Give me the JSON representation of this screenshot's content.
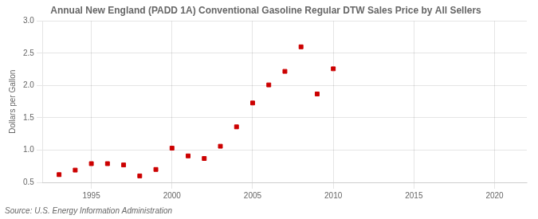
{
  "chart_data": {
    "type": "scatter",
    "title": "Annual New England (PADD 1A) Conventional Gasoline Regular DTW Sales Price by All Sellers",
    "ylabel": "Dollars per Gallon",
    "annotations": [
      "Source: U.S. Energy Information Administration"
    ],
    "x": [
      1993,
      1994,
      1995,
      1996,
      1997,
      1998,
      1999,
      2000,
      2001,
      2002,
      2003,
      2004,
      2005,
      2006,
      2007,
      2008,
      2009,
      2010
    ],
    "values": [
      0.62,
      0.69,
      0.79,
      0.79,
      0.77,
      0.6,
      0.7,
      1.03,
      0.91,
      0.87,
      1.06,
      1.36,
      1.73,
      2.01,
      2.22,
      2.6,
      1.87,
      2.26
    ],
    "color": "#cc0000",
    "marker": "square",
    "xlim": [
      1992,
      2022
    ],
    "xticks": [
      1995,
      2000,
      2005,
      2010,
      2015,
      2020
    ],
    "ylim": [
      0.5,
      3.0
    ],
    "yticks": [
      0.5,
      {
        "value": 1.0,
        "label": "1.0"
      },
      1.5,
      {
        "value": 2.0,
        "label": "2.0"
      },
      2.5,
      {
        "value": 3.0,
        "label": "3.0"
      }
    ],
    "grid": true
  }
}
